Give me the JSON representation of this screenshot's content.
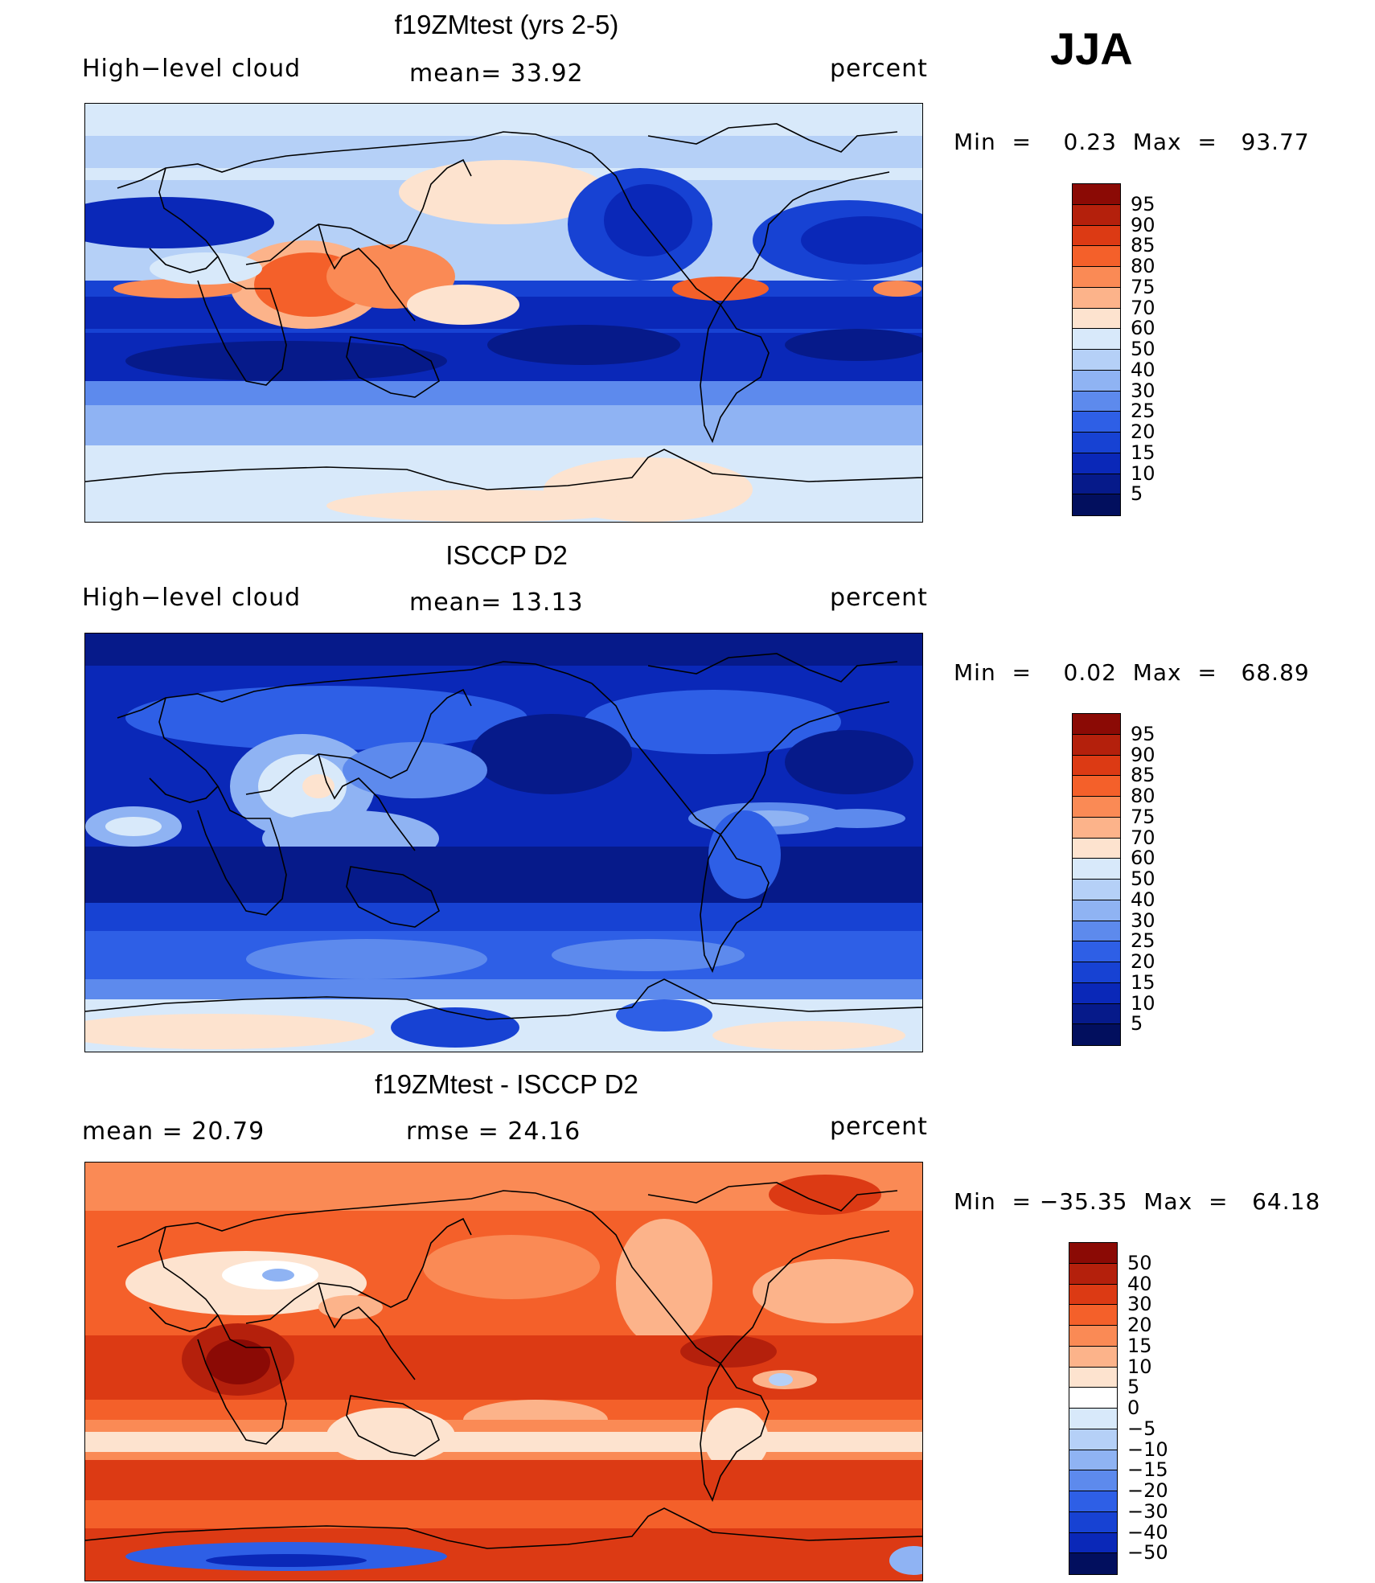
{
  "season": "JJA",
  "panels": [
    {
      "title": "f19ZMtest (yrs 2-5)",
      "left_label": "High−level cloud",
      "center_label": "mean=   33.92",
      "right_label": "percent",
      "minmax": "Min  =    0.23  Max  =   93.77",
      "colorbar": {
        "levels": [
          "95",
          "90",
          "85",
          "80",
          "75",
          "70",
          "60",
          "50",
          "40",
          "30",
          "25",
          "20",
          "15",
          "10",
          "5"
        ],
        "colors": [
          "#8b0a05",
          "#b4200c",
          "#dc3a14",
          "#f4602a",
          "#fa8a55",
          "#fcb38a",
          "#fde3cf",
          "#d8e9fa",
          "#b5d0f7",
          "#8fb3f3",
          "#5d8aed",
          "#2e5fe6",
          "#1742d3",
          "#0a28b8",
          "#061a8a",
          "#020f5e"
        ]
      }
    },
    {
      "title": "ISCCP D2",
      "left_label": "High−level cloud",
      "center_label": "mean=   13.13",
      "right_label": "percent",
      "minmax": "Min  =    0.02  Max  =   68.89",
      "colorbar": {
        "levels": [
          "95",
          "90",
          "85",
          "80",
          "75",
          "70",
          "60",
          "50",
          "40",
          "30",
          "25",
          "20",
          "15",
          "10",
          "5"
        ],
        "colors": [
          "#8b0a05",
          "#b4200c",
          "#dc3a14",
          "#f4602a",
          "#fa8a55",
          "#fcb38a",
          "#fde3cf",
          "#d8e9fa",
          "#b5d0f7",
          "#8fb3f3",
          "#5d8aed",
          "#2e5fe6",
          "#1742d3",
          "#0a28b8",
          "#061a8a",
          "#020f5e"
        ]
      }
    },
    {
      "title": "f19ZMtest - ISCCP D2",
      "left_label": "mean  =    20.79",
      "center_label": "rmse  =    24.16",
      "right_label": "percent",
      "minmax": "Min  = −35.35  Max  =   64.18",
      "colorbar": {
        "levels": [
          "50",
          "40",
          "30",
          "20",
          "15",
          "10",
          "5",
          "0",
          "−5",
          "−10",
          "−15",
          "−20",
          "−30",
          "−40",
          "−50"
        ],
        "colors": [
          "#8b0a05",
          "#b4200c",
          "#dc3a14",
          "#f4602a",
          "#fa8a55",
          "#fcb38a",
          "#fde3cf",
          "#ffffff",
          "#d8e9fa",
          "#b5d0f7",
          "#8fb3f3",
          "#5d8aed",
          "#2e5fe6",
          "#1742d3",
          "#0a28b8",
          "#020f5e"
        ]
      }
    }
  ]
}
